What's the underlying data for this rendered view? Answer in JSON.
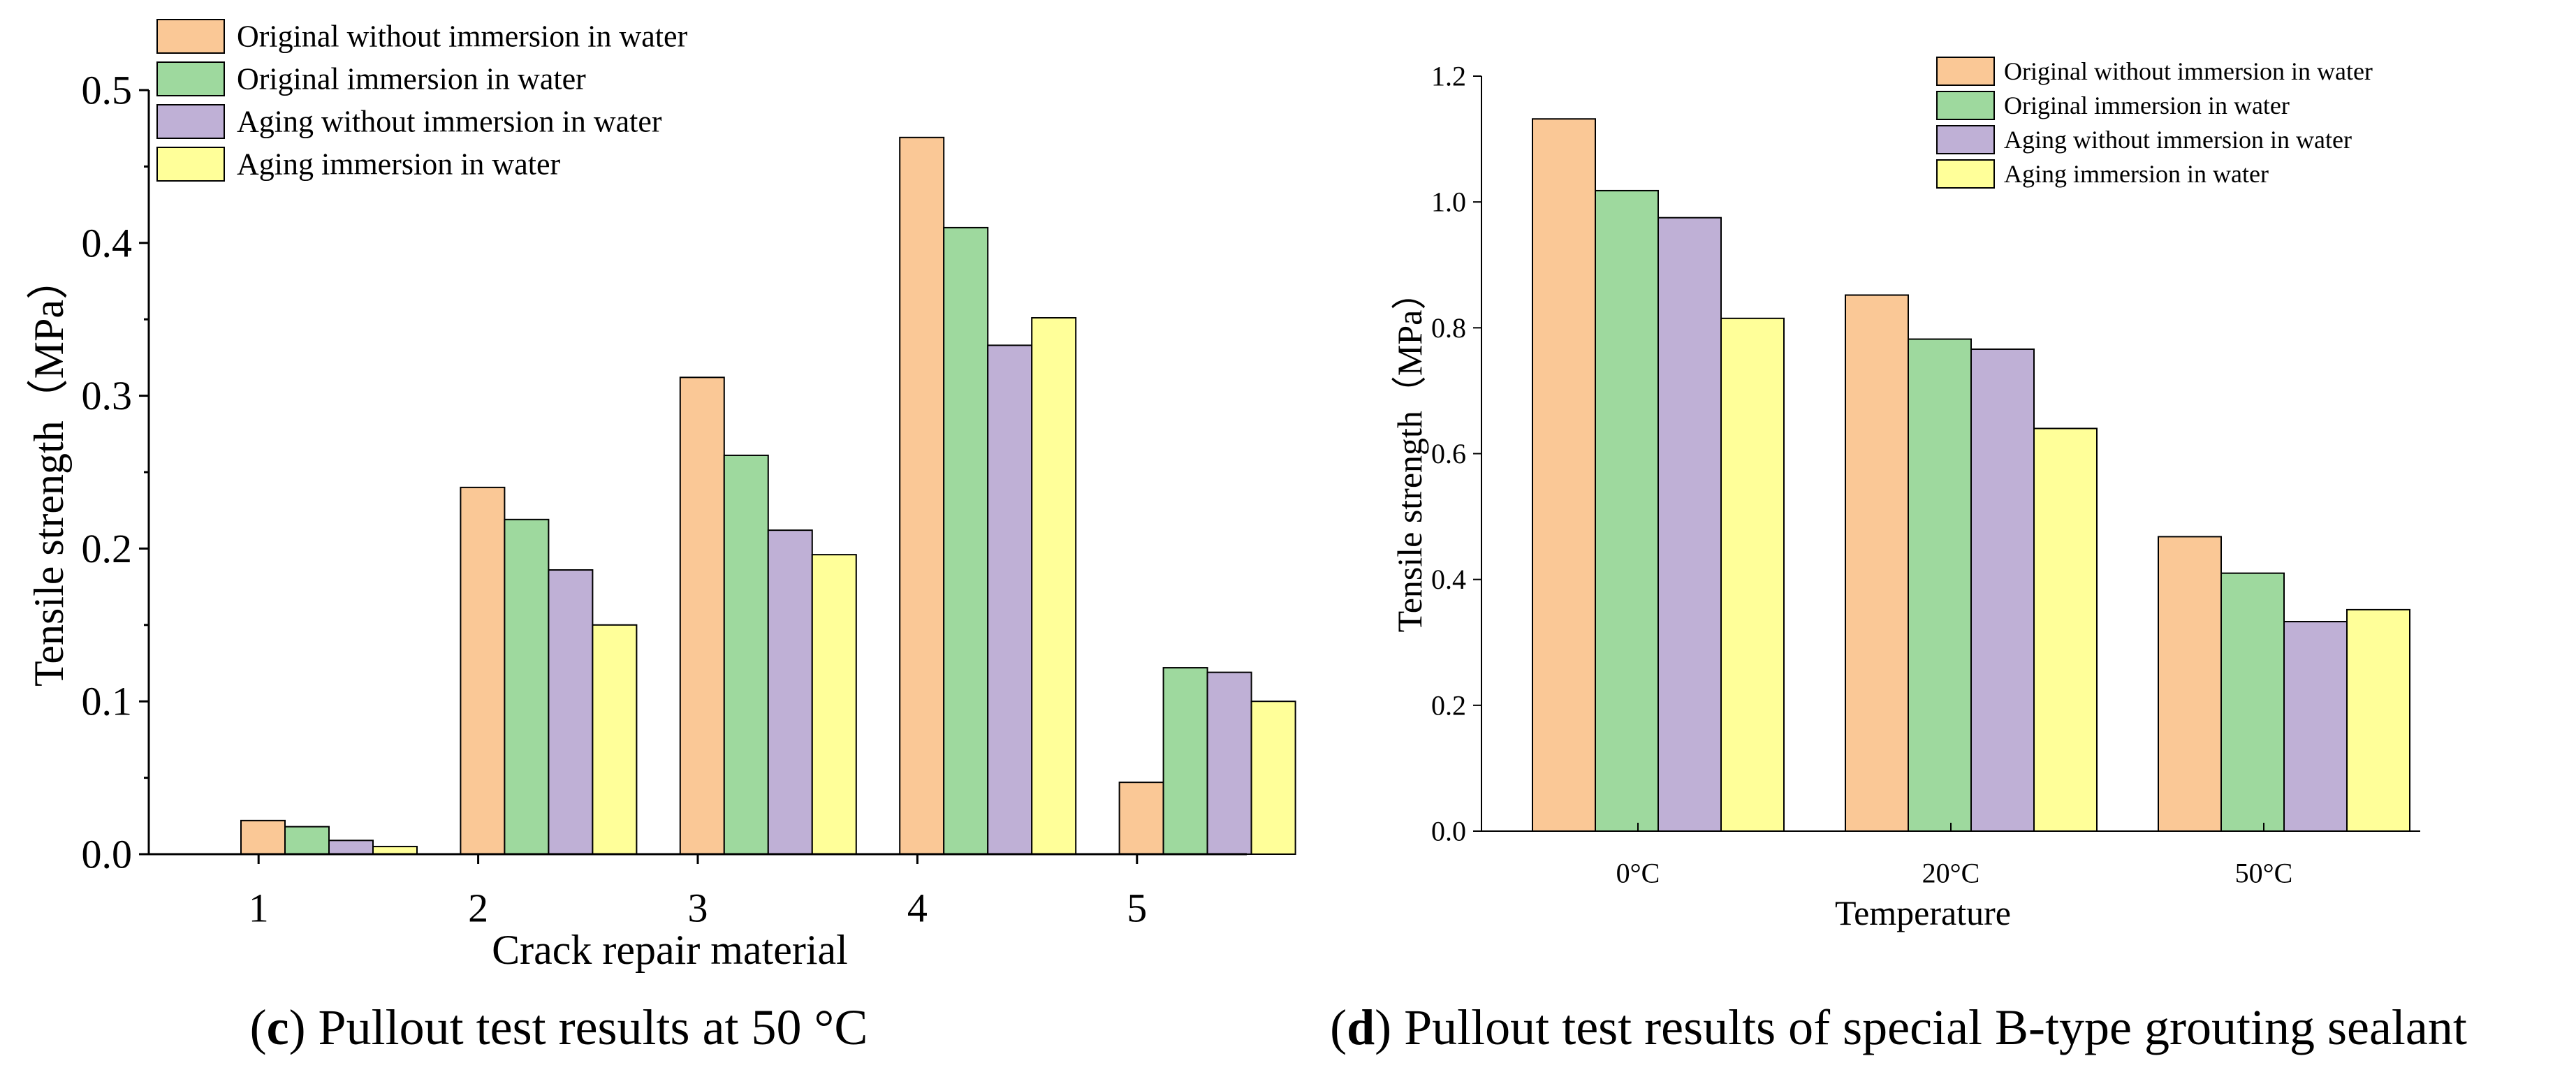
{
  "colors": {
    "series": [
      "#FAC896",
      "#9ED99E",
      "#BFB0D6",
      "#FFFF99"
    ],
    "edge": "#000000"
  },
  "chart_data": [
    {
      "type": "bar",
      "panel": "c",
      "caption": {
        "label": "c",
        "text": ") Pullout test results at 50 °C",
        "open": "("
      },
      "title": "",
      "xlabel": "Crack repair material",
      "ylabel": "Tensile strength（MPa）",
      "categories": [
        "1",
        "2",
        "3",
        "4",
        "5"
      ],
      "ylim": [
        0,
        0.5
      ],
      "yticks": [
        "0.0",
        "0.1",
        "0.2",
        "0.3",
        "0.4",
        "0.5"
      ],
      "legend_position": "top-left",
      "series": [
        {
          "name": "Original without immersion in water",
          "values": [
            0.022,
            0.24,
            0.312,
            0.469,
            0.047
          ]
        },
        {
          "name": "Original immersion in water",
          "values": [
            0.018,
            0.219,
            0.261,
            0.41,
            0.122
          ]
        },
        {
          "name": "Aging without immersion in water",
          "values": [
            0.009,
            0.186,
            0.212,
            0.333,
            0.119
          ]
        },
        {
          "name": "Aging immersion in water",
          "values": [
            0.005,
            0.15,
            0.196,
            0.351,
            0.1
          ]
        }
      ]
    },
    {
      "type": "bar",
      "panel": "d",
      "caption": {
        "label": "d",
        "text": ") Pullout test results of special B-type grouting sealant",
        "open": "("
      },
      "title": "",
      "xlabel": "Temperature",
      "ylabel": "Tensile strength（MPa）",
      "categories": [
        "0°C",
        "20°C",
        "50°C"
      ],
      "ylim": [
        0,
        1.2
      ],
      "yticks": [
        "0.0",
        "0.2",
        "0.4",
        "0.6",
        "0.8",
        "1.0",
        "1.2"
      ],
      "legend_position": "top-right",
      "series": [
        {
          "name": "Original without immersion in water",
          "values": [
            1.132,
            0.852,
            0.468
          ]
        },
        {
          "name": "Original immersion in water",
          "values": [
            1.018,
            0.782,
            0.41
          ]
        },
        {
          "name": "Aging without immersion in water",
          "values": [
            0.975,
            0.766,
            0.333
          ]
        },
        {
          "name": "Aging immersion in water",
          "values": [
            0.815,
            0.64,
            0.352
          ]
        }
      ]
    }
  ]
}
